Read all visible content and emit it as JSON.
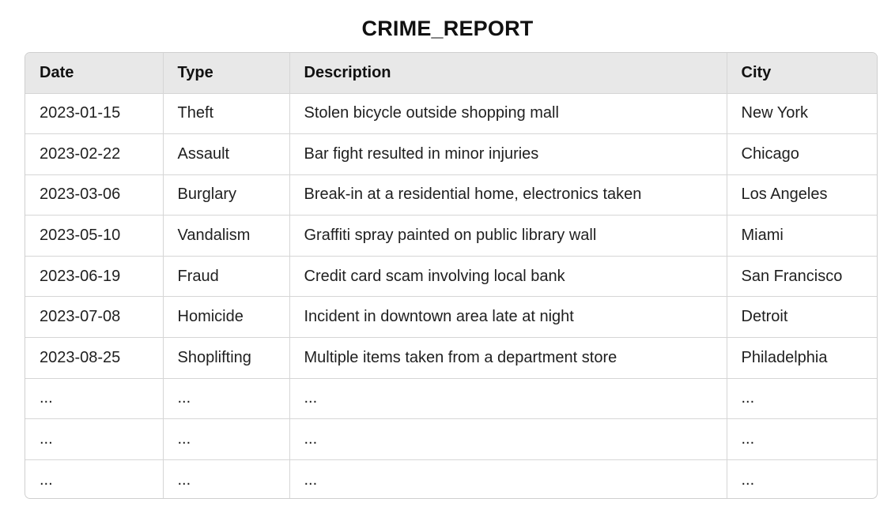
{
  "title": "CRIME_REPORT",
  "table": {
    "headers": [
      "Date",
      "Type",
      "Description",
      "City"
    ],
    "rows": [
      [
        "2023-01-15",
        "Theft",
        "Stolen bicycle outside shopping mall",
        "New York"
      ],
      [
        "2023-02-22",
        "Assault",
        "Bar fight resulted in minor injuries",
        "Chicago"
      ],
      [
        "2023-03-06",
        "Burglary",
        "Break-in at a residential home, electronics taken",
        "Los Angeles"
      ],
      [
        "2023-05-10",
        "Vandalism",
        "Graffiti spray painted on public library wall",
        "Miami"
      ],
      [
        "2023-06-19",
        "Fraud",
        "Credit card scam involving local bank",
        "San Francisco"
      ],
      [
        "2023-07-08",
        "Homicide",
        "Incident in downtown area late at night",
        "Detroit"
      ],
      [
        "2023-08-25",
        "Shoplifting",
        "Multiple items taken from a department store",
        "Philadelphia"
      ],
      [
        "...",
        "...",
        "...",
        "..."
      ],
      [
        "...",
        "...",
        "...",
        "..."
      ],
      [
        "...",
        "...",
        "...",
        "..."
      ]
    ]
  }
}
